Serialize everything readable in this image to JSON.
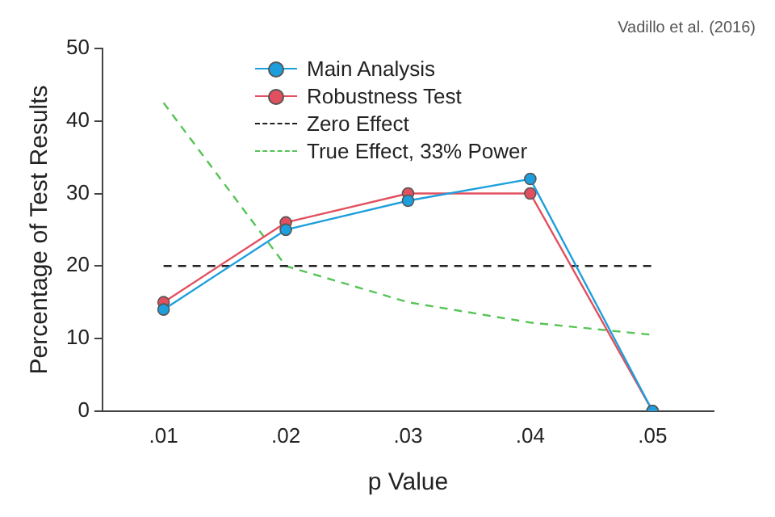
{
  "chart_data": {
    "type": "line",
    "xlabel": "p Value",
    "ylabel": "Percentage of Test Results",
    "categories": [
      ".01",
      ".02",
      ".03",
      ".04",
      ".05"
    ],
    "ylim": [
      0,
      50
    ],
    "yticks": [
      0,
      10,
      20,
      30,
      40,
      50
    ],
    "grid": false,
    "legend": "top left",
    "marker": "circle",
    "line_style": "solid",
    "annotations": [
      "Vadillo et al. (2016)"
    ],
    "series": [
      {
        "name": "Main Analysis",
        "color": "#1c9fdc",
        "values": [
          14,
          25,
          29,
          32,
          0
        ]
      },
      {
        "name": "Robustness Test",
        "color": "#e2505f",
        "values": [
          15,
          26,
          30,
          30,
          0
        ]
      },
      {
        "name": "Zero Effect",
        "color": "#222222",
        "values": [
          20,
          20,
          20,
          20,
          20
        ],
        "marker": "none",
        "line_style": "dashed"
      },
      {
        "name": "True Effect, 33% Power",
        "color": "#55c455",
        "values": [
          42.5,
          20,
          15,
          12.2,
          10.5
        ],
        "marker": "none",
        "line_style": "dashed"
      }
    ]
  }
}
